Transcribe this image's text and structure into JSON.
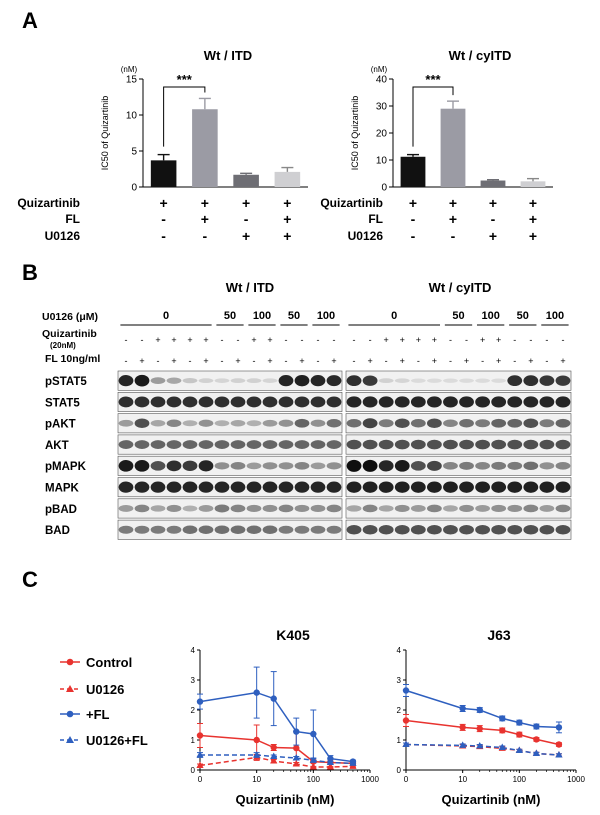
{
  "panels": {
    "A": "A",
    "B": "B",
    "C": "C"
  },
  "panel_a": {
    "unit": "(nM)",
    "ylabel": "IC50 of Quizartinib",
    "sig": "***",
    "row_labels": [
      "Quizartinib",
      "FL",
      "U0126"
    ],
    "conditions": [
      [
        "+",
        "-",
        "-"
      ],
      [
        "+",
        "+",
        "-"
      ],
      [
        "+",
        "-",
        "+"
      ],
      [
        "+",
        "+",
        "+"
      ]
    ]
  },
  "panel_b": {
    "titles": [
      "Wt / ITD",
      "Wt / cyITD"
    ],
    "u0126_label": "U0126 (μM)",
    "doses": [
      "0",
      "50",
      "100",
      "50",
      "100"
    ],
    "quiz_label": "Quizartinib",
    "quiz_sub": "(20nM)",
    "fl_label": "FL 10ng/ml",
    "quiz_signs": [
      "-",
      "-",
      "+",
      "+",
      "+",
      "+",
      "-",
      "-",
      "+",
      "+",
      "-",
      "-",
      "-",
      "-"
    ],
    "fl_signs": [
      "-",
      "+",
      "-",
      "+",
      "-",
      "+",
      "-",
      "+",
      "-",
      "+",
      "-",
      "+",
      "-",
      "+"
    ],
    "blots": [
      "pSTAT5",
      "STAT5",
      "pAKT",
      "AKT",
      "pMAPK",
      "MAPK",
      "pBAD",
      "BAD"
    ]
  },
  "panel_c": {
    "legend": [
      "Control",
      "U0126",
      "+FL",
      "U0126+FL"
    ],
    "xlabel": "Quizartinib (nM)",
    "xticks": [
      "0",
      "10",
      "100",
      "1000"
    ],
    "yticks": [
      "0",
      "1",
      "2",
      "3",
      "4"
    ]
  },
  "chart_data": [
    {
      "type": "bar",
      "title": "Wt / ITD",
      "ylabel": "IC50 of Quizartinib",
      "unit": "(nM)",
      "ylim": [
        0,
        15
      ],
      "yticks": [
        0,
        5,
        10,
        15
      ],
      "values": [
        3.7,
        10.8,
        1.7,
        2.1
      ],
      "errors": [
        0.8,
        1.5,
        0.2,
        0.6
      ],
      "colors": [
        "#111111",
        "#9b9ba4",
        "#6e6e74",
        "#cfcfd2"
      ]
    },
    {
      "type": "bar",
      "title": "Wt / cyITD",
      "ylabel": "IC50 of Quizartinib",
      "unit": "(nM)",
      "ylim": [
        0,
        40
      ],
      "yticks": [
        0,
        10,
        20,
        30,
        40
      ],
      "values": [
        11.2,
        29.0,
        2.4,
        2.1
      ],
      "errors": [
        0.8,
        2.8,
        0.3,
        1.0
      ],
      "colors": [
        "#111111",
        "#9b9ba4",
        "#6e6e74",
        "#cfcfd2"
      ]
    },
    {
      "type": "line",
      "title": "K405",
      "xlabel": "Quizartinib (nM)",
      "xscale": "log",
      "ylim": [
        0,
        4
      ],
      "x": [
        0,
        10,
        20,
        50,
        100,
        200,
        500
      ],
      "series": [
        {
          "name": "Control",
          "color": "#e8332f",
          "dash": false,
          "marker": "circle",
          "values": [
            1.15,
            1.0,
            0.75,
            0.73,
            0.28,
            0.25,
            0.22
          ],
          "errors": [
            0.4,
            0.5,
            0.1,
            0.55,
            0.05,
            0.05,
            0.05
          ]
        },
        {
          "name": "U0126",
          "color": "#e8332f",
          "dash": true,
          "marker": "triangle",
          "values": [
            0.15,
            0.42,
            0.3,
            0.2,
            0.1,
            0.1,
            0.12
          ],
          "errors": [
            0.05,
            0.1,
            0.05,
            0.05,
            0.02,
            0.02,
            0.02
          ]
        },
        {
          "name": "+FL",
          "color": "#2e5fbf",
          "dash": false,
          "marker": "circle",
          "values": [
            2.28,
            2.58,
            2.38,
            1.28,
            1.2,
            0.38,
            0.28
          ],
          "errors": [
            0.25,
            0.85,
            0.9,
            0.45,
            0.8,
            0.1,
            0.05
          ]
        },
        {
          "name": "U0126+FL",
          "color": "#2e5fbf",
          "dash": true,
          "marker": "triangle",
          "values": [
            0.5,
            0.5,
            0.45,
            0.4,
            0.32,
            0.25,
            0.22
          ],
          "errors": [
            0.08,
            0.08,
            0.05,
            0.05,
            0.05,
            0.03,
            0.03
          ]
        }
      ]
    },
    {
      "type": "line",
      "title": "J63",
      "xlabel": "Quizartinib (nM)",
      "xscale": "log",
      "ylim": [
        0,
        4
      ],
      "x": [
        0,
        10,
        20,
        50,
        100,
        200,
        500
      ],
      "series": [
        {
          "name": "Control",
          "color": "#e8332f",
          "dash": false,
          "marker": "circle",
          "values": [
            1.65,
            1.42,
            1.38,
            1.32,
            1.18,
            1.02,
            0.85
          ],
          "errors": [
            0.2,
            0.1,
            0.1,
            0.08,
            0.08,
            0.06,
            0.06
          ]
        },
        {
          "name": "U0126",
          "color": "#e8332f",
          "dash": true,
          "marker": "triangle",
          "values": [
            0.85,
            0.8,
            0.78,
            0.72,
            0.65,
            0.55,
            0.5
          ],
          "errors": [
            0.05,
            0.05,
            0.05,
            0.05,
            0.04,
            0.04,
            0.04
          ]
        },
        {
          "name": "+FL",
          "color": "#2e5fbf",
          "dash": false,
          "marker": "circle",
          "values": [
            2.65,
            2.05,
            2.0,
            1.72,
            1.58,
            1.45,
            1.42
          ],
          "errors": [
            0.2,
            0.1,
            0.08,
            0.08,
            0.08,
            0.08,
            0.18
          ]
        },
        {
          "name": "U0126+FL",
          "color": "#2e5fbf",
          "dash": true,
          "marker": "triangle",
          "values": [
            0.85,
            0.82,
            0.8,
            0.75,
            0.65,
            0.55,
            0.5
          ],
          "errors": [
            0.05,
            0.05,
            0.05,
            0.05,
            0.04,
            0.04,
            0.04
          ]
        }
      ]
    }
  ]
}
